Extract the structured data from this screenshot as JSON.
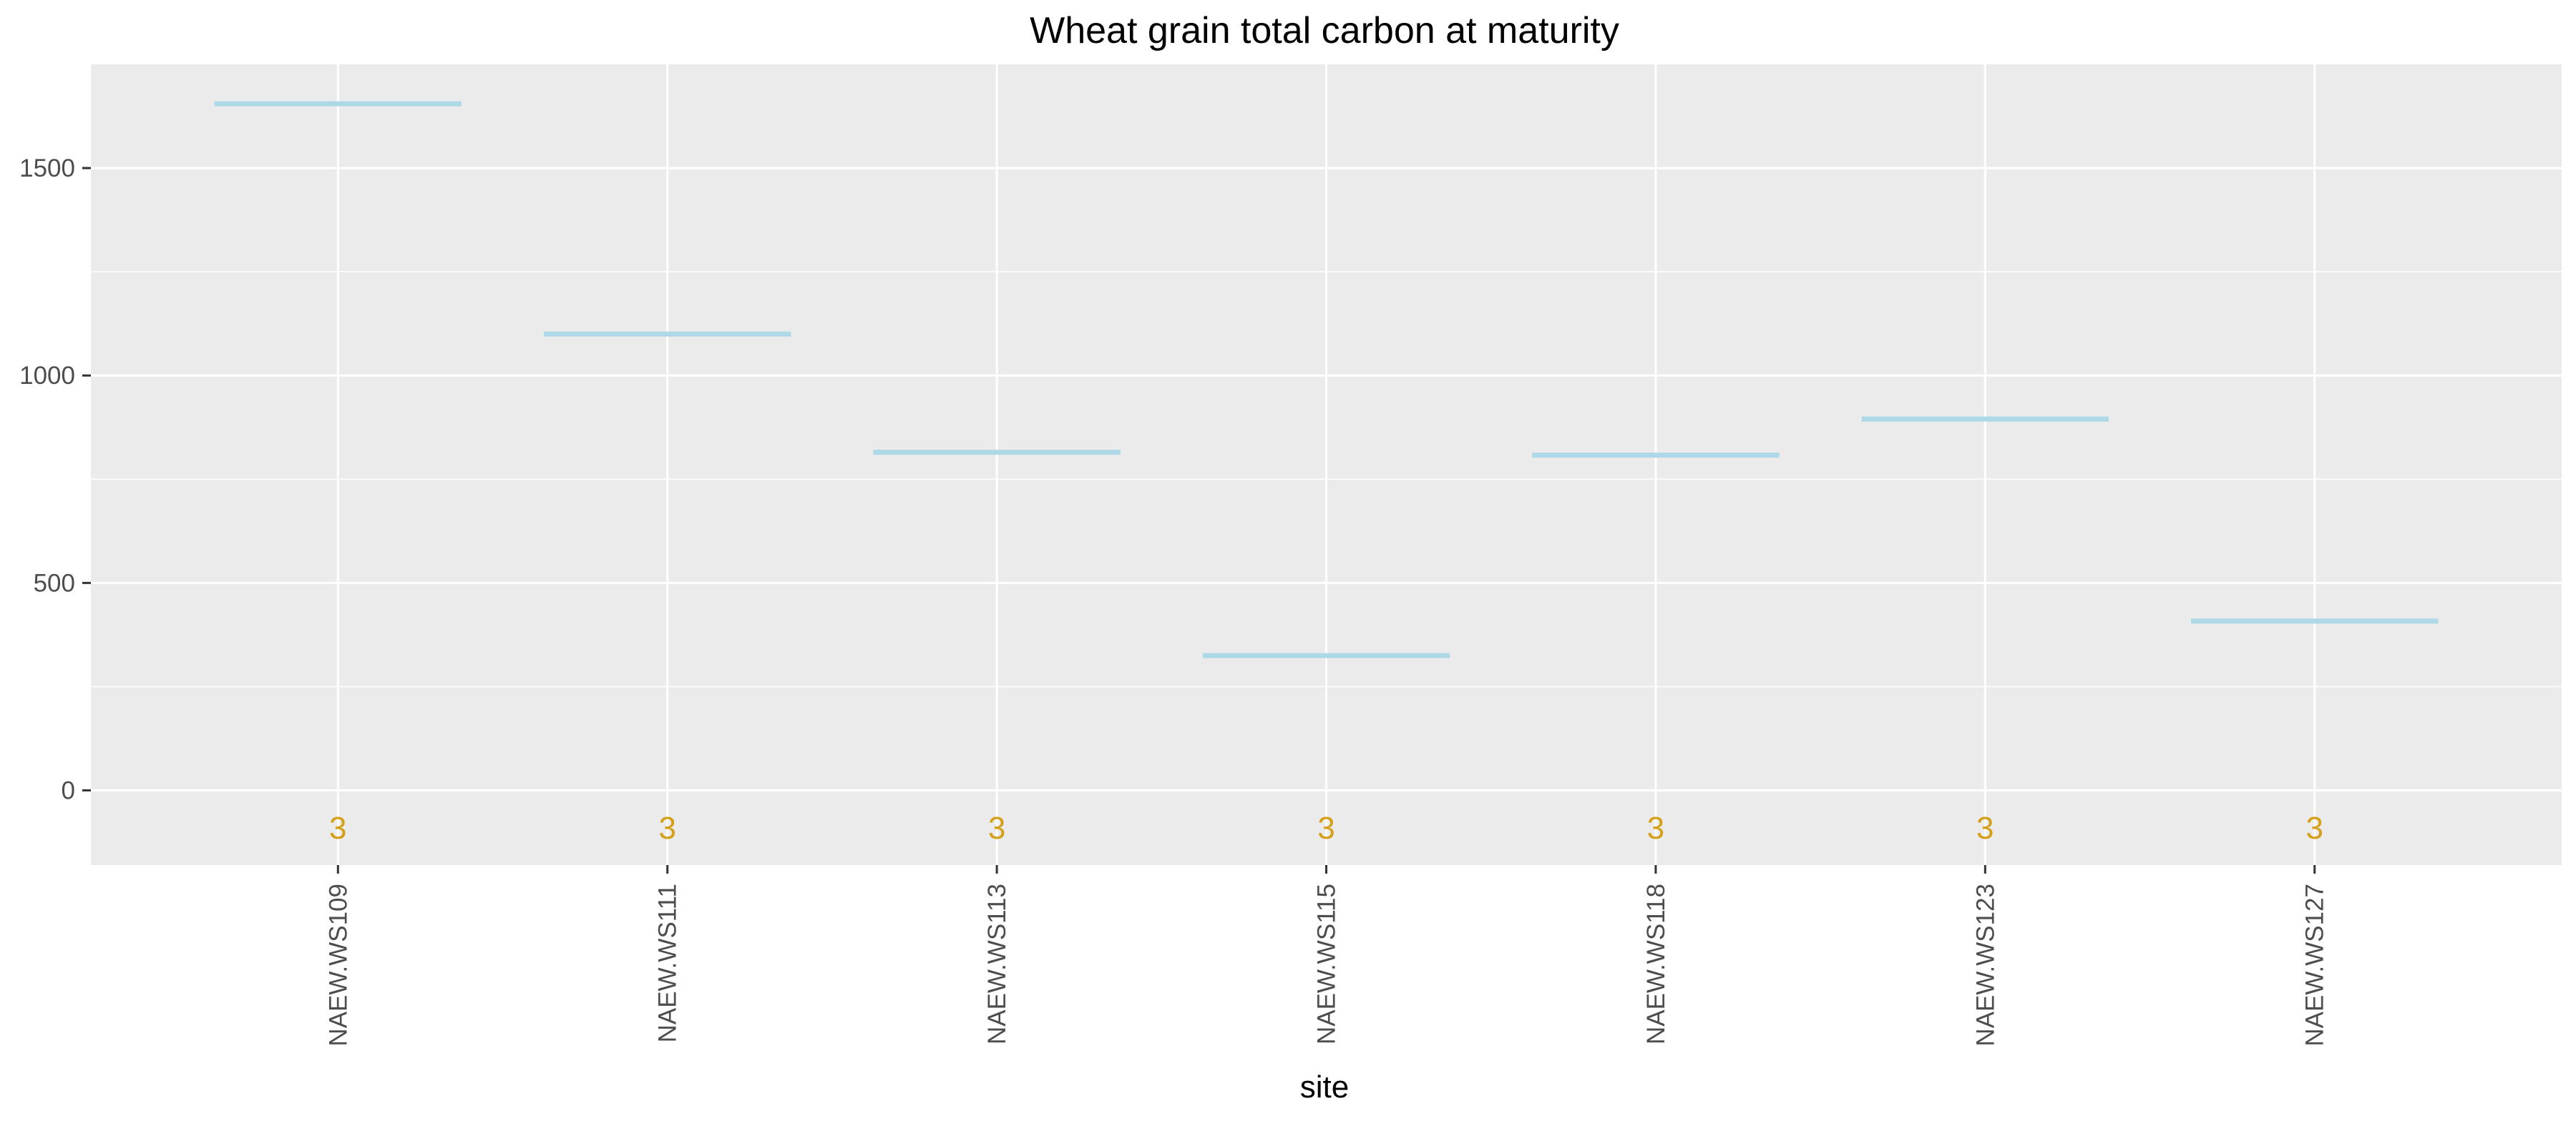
{
  "chart_data": {
    "type": "errorbar",
    "title": "Wheat grain total carbon at maturity",
    "xlabel": "site",
    "ylabel": "",
    "categories": [
      "NAEW.WS109",
      "NAEW.WS111",
      "NAEW.WS113",
      "NAEW.WS115",
      "NAEW.WS118",
      "NAEW.WS123",
      "NAEW.WS127"
    ],
    "values": [
      1655,
      1100,
      815,
      325,
      808,
      895,
      408
    ],
    "counts": [
      "3",
      "3",
      "3",
      "3",
      "3",
      "3",
      "3"
    ],
    "count_y": -90,
    "yticks": [
      0,
      500,
      1000,
      1500
    ],
    "ytick_labels": [
      "0",
      "500",
      "1000",
      "1500"
    ],
    "ylim": [
      -180,
      1750
    ],
    "grid": true,
    "legend": "none",
    "colors": {
      "panel": "#EBEBEB",
      "grid": "#FFFFFF",
      "bar": "#ADD8E6",
      "count": "#D4A017",
      "tick": "#333333"
    }
  }
}
